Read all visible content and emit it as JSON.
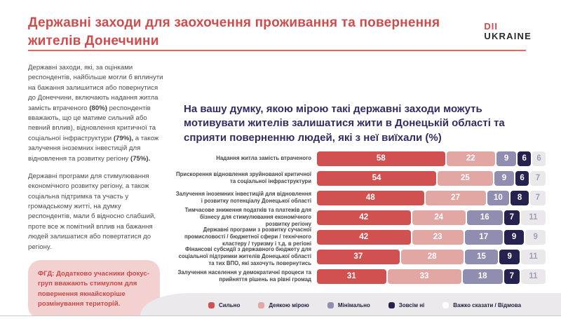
{
  "header": {
    "title": "Державні заходи для заохочення проживання та повернення жителів Донеччини",
    "logo_line1": "DII",
    "logo_line2": "UKRAINE",
    "accent_color": "#d04b4b"
  },
  "sidebar": {
    "p1_runs": [
      "Державні заходи, які, за оцінками респондентів, найбільше могли б вплинути на бажання залишитися або повернутися до Донеччини, включають надання житла замість втраченого ",
      "(80%)",
      " респондентів вважають, що це матиме сильний або певний вплив), відновлення критичної та соціальної інфраструктури ",
      "(79%),",
      " а також залучення іноземних інвестицій для відновлення та розвитку регіону ",
      "(75%)."
    ],
    "p2": "Державні програми для стимулювання економічного розвитку регіону, а також соціальна підтримка та участь у громадському житті, на думку респондентів, мали б відносно слабший, проте все ж помітний вплив на бажання людей залишатися або повертатися до регіону.",
    "note": "ФГД: Додатково учасники фокус-груп вважають стимулом для повернення якнайскоріше розмінування територій."
  },
  "chart_data": {
    "type": "bar",
    "orientation": "horizontal",
    "stacked": true,
    "unit": "%",
    "title": "На вашу думку, якою мірою такі державні заходи можуть мотивувати жителів залишатися жити в Донецькій області та сприяти поверненню людей,  які з неї виїхали (%)",
    "title_color": "#322c63",
    "legend_position": "bottom",
    "categories": [
      "Надання житла замість втраченого",
      "Прискорення відновлення зруйнованої критичної та соціальної інфраструктури",
      "Залучення іноземних інвестицій для відновлення і розвитку потенціалу Донецької області",
      "Тимчасове зниження податків та платежів для бізнесу для стимулювання економічного розвитку регіону",
      "Державні програми з розвитку сучасної промисловості / бюджетної сфери / технічного кластеру / туризму і т.д. в регіоні",
      "Фінансові субсидії з державного бюджету для соціальної підтримки жителів Донецької області та тих ВПО, які захочуть повернутись",
      "Залучення населення у демократичні процеси та прийняття рішень на рівні громад"
    ],
    "series": [
      {
        "name": "Сильно",
        "color": "#d15151",
        "text_color": "#ffffff",
        "values": [
          58,
          54,
          48,
          42,
          42,
          37,
          31
        ]
      },
      {
        "name": "Деякою мірою",
        "color": "#e2a6a3",
        "text_color": "#ffffff",
        "values": [
          22,
          25,
          27,
          24,
          23,
          28,
          33
        ]
      },
      {
        "name": "Мінімально",
        "color": "#8f8db0",
        "text_color": "#ffffff",
        "values": [
          9,
          9,
          10,
          16,
          17,
          15,
          18
        ]
      },
      {
        "name": "Зовсім ні",
        "color": "#262250",
        "text_color": "#ffffff",
        "values": [
          6,
          6,
          8,
          7,
          9,
          9,
          7
        ]
      },
      {
        "name": "Важко сказати / Відмова",
        "color": "#eae8eb",
        "text_color": "#a19fb6",
        "values": [
          6,
          7,
          7,
          11,
          9,
          11,
          11
        ]
      }
    ]
  }
}
